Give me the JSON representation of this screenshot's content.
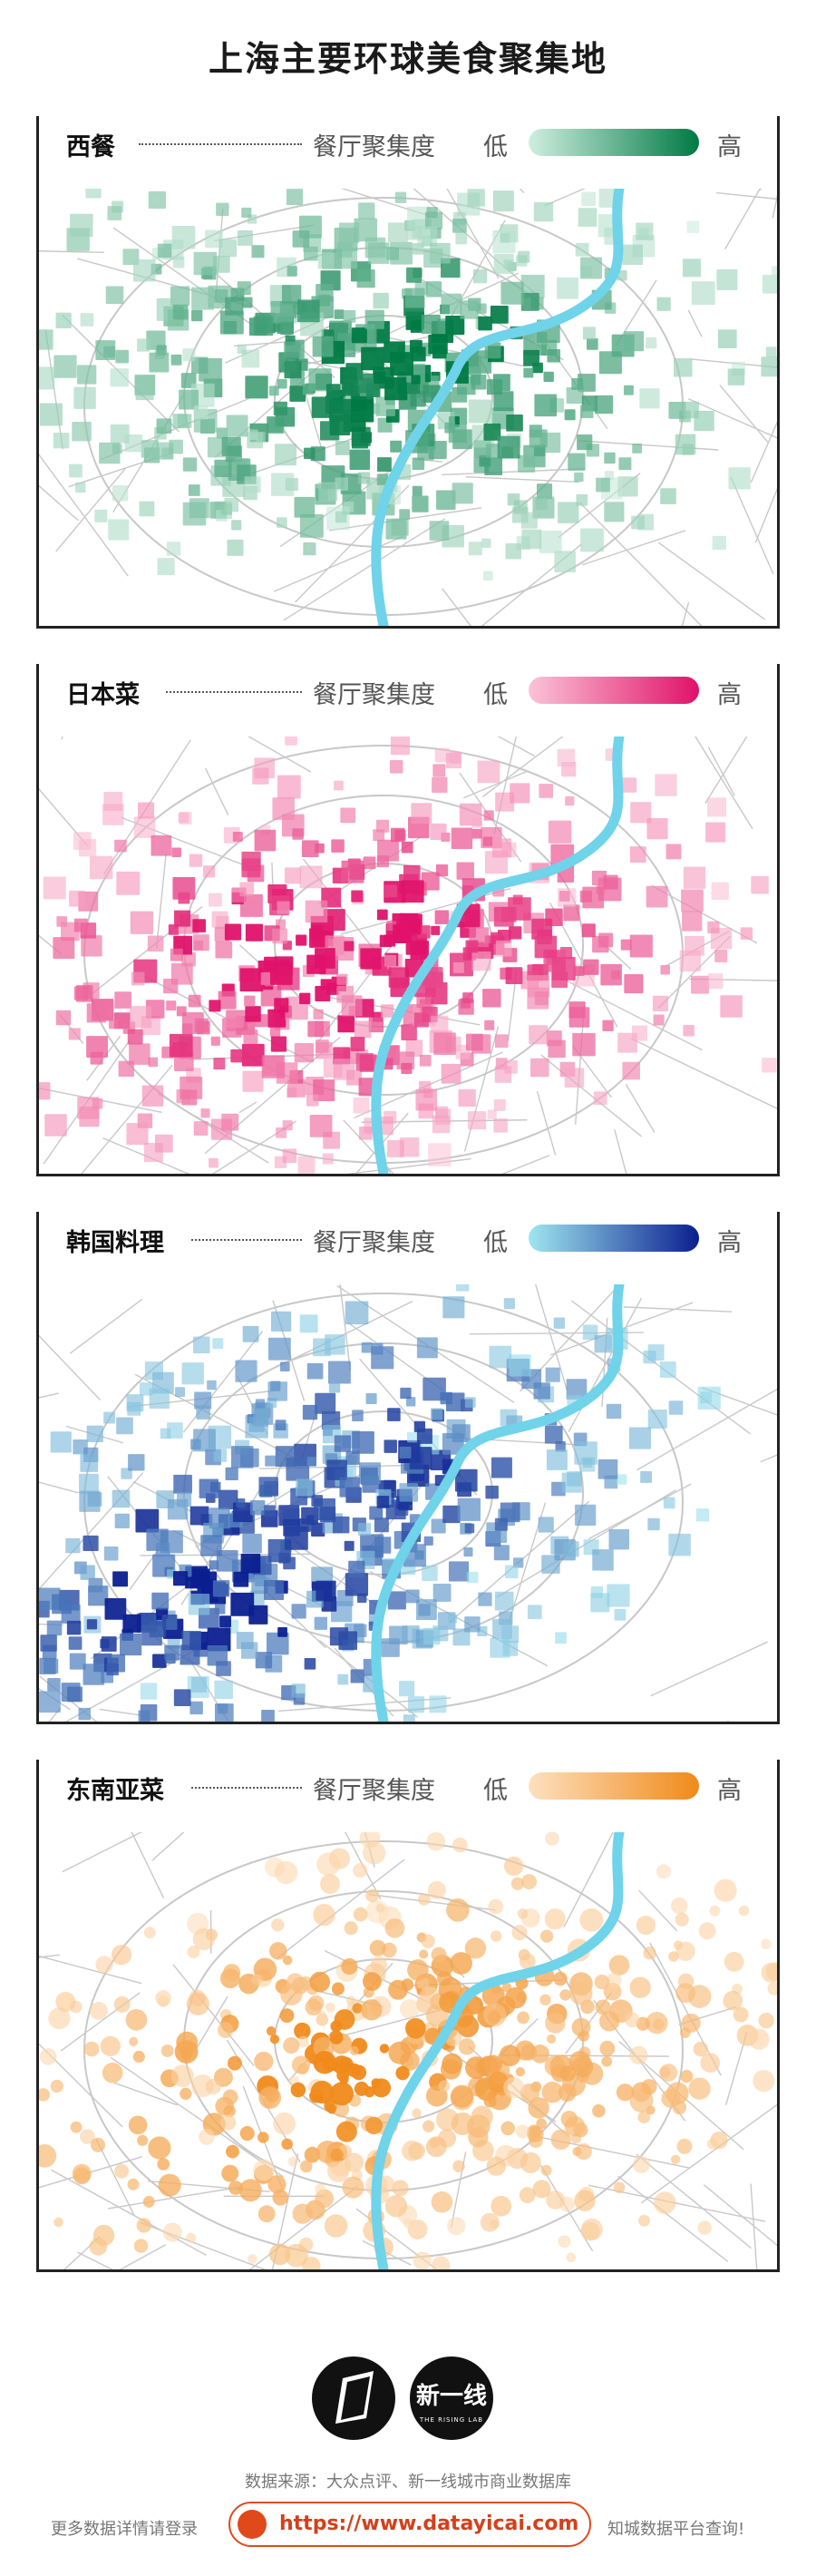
{
  "title": "上海主要环球美食聚集地",
  "legend": {
    "density": "餐厅聚集度",
    "low": "低",
    "high": "高"
  },
  "panels": [
    {
      "name": "西餐",
      "color_low": "#cfeee0",
      "color_high": "#007a45",
      "hotspot": "downtown-core"
    },
    {
      "name": "日本菜",
      "color_low": "#fbc3d6",
      "color_high": "#e0126a",
      "hotspot": "west-central"
    },
    {
      "name": "韩国料理",
      "color_low": "#9ee6ef",
      "color_high": "#0b1f90",
      "hotspot": "southwest"
    },
    {
      "name": "东南亚菜",
      "color_low": "#fde0bf",
      "color_high": "#f08a1a",
      "hotspot": "central"
    }
  ],
  "river_color": "#6fd3ea",
  "road_color": "#c8c8c8",
  "logo": {
    "icon": "notebook-logo-icon",
    "brand": "新一线",
    "sub": "THE RISING LAB"
  },
  "footer": {
    "source": "数据来源：大众点评、新一线城市商业数据库",
    "more_left": "更多数据详情请登录",
    "url": "https://www.datayicai.com",
    "more_right": "知城数据平台查询!"
  }
}
